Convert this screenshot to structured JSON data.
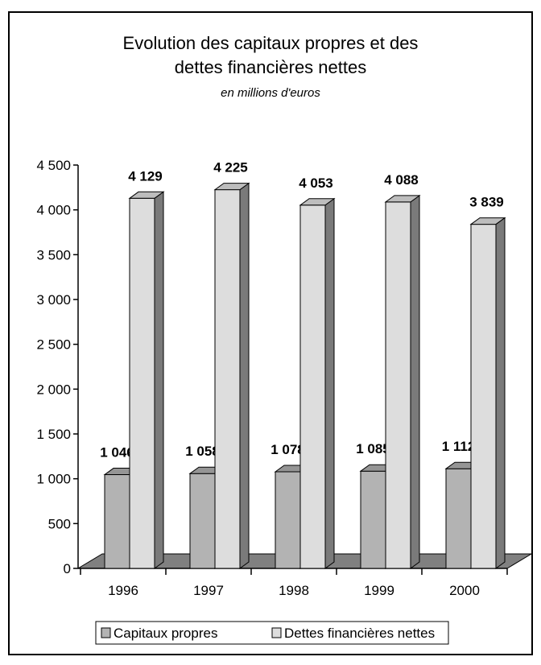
{
  "chart_data": {
    "type": "bar",
    "title_line1": "Evolution des capitaux propres et des",
    "title_line2": "dettes financières nettes",
    "subtitle": "en millions d'euros",
    "categories": [
      "1996",
      "1997",
      "1998",
      "1999",
      "2000"
    ],
    "series": [
      {
        "name": "Capitaux propres",
        "values": [
          1046,
          1058,
          1078,
          1085,
          1112
        ],
        "labels": [
          "1 046",
          "1 058",
          "1 078",
          "1 085",
          "1 112"
        ],
        "color": "#b3b3b3",
        "side_color": "#6e6e6e",
        "top_color": "#959595"
      },
      {
        "name": "Dettes financières nettes",
        "values": [
          4129,
          4225,
          4053,
          4088,
          3839
        ],
        "labels": [
          "4 129",
          "4 225",
          "4 053",
          "4 088",
          "3 839"
        ],
        "color": "#dddddd",
        "side_color": "#7a7a7a",
        "top_color": "#bdbdbd"
      }
    ],
    "ylim": [
      0,
      4500
    ],
    "yticks": [
      0,
      500,
      1000,
      1500,
      2000,
      2500,
      3000,
      3500,
      4000,
      4500
    ],
    "ytick_labels": [
      "0",
      "500",
      "1 000",
      "1 500",
      "2 000",
      "2 500",
      "3 000",
      "3 500",
      "4 000",
      "4 500"
    ],
    "floor_color": "#808080",
    "legend_position": "bottom",
    "grid": false,
    "three_d": true
  }
}
